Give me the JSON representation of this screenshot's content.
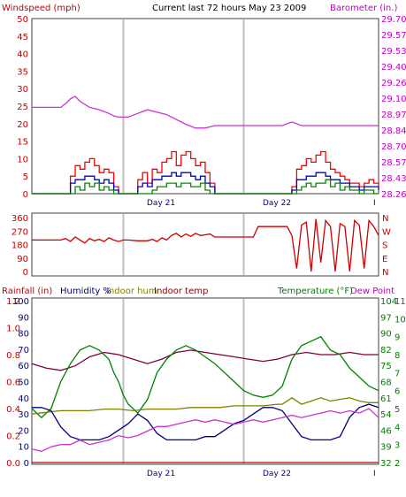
{
  "chart_data": [
    {
      "type": "line",
      "title": "Current last 72 hours May 23 2009",
      "left_axis": {
        "label": "Windspeed (mph)",
        "ticks": [
          "50",
          "45",
          "40",
          "35",
          "30",
          "25",
          "20",
          "15",
          "10",
          "5",
          "0"
        ],
        "range": [
          0,
          50
        ],
        "color": "#c00000"
      },
      "right_axis": {
        "label": "Barometer (in.)",
        "ticks": [
          "29.70",
          "29.57",
          "29.53",
          "29.40",
          "29.26",
          "29.10",
          "28.97",
          "28.84",
          "28.70",
          "28.57",
          "28.43",
          "28.26"
        ],
        "range": [
          28.26,
          29.7
        ],
        "color": "#c000c0"
      },
      "x_labels": [
        "Day 21",
        "Day 22",
        "I"
      ],
      "x_range": [
        0,
        72
      ],
      "day_lines": [
        19,
        44
      ],
      "series": [
        {
          "kind": "barometer",
          "color": "#cc33cc",
          "x": [
            0,
            6,
            7,
            8,
            9,
            10,
            12,
            14,
            16,
            17,
            18,
            19,
            20,
            22,
            24,
            26,
            28,
            30,
            32,
            34,
            36,
            38,
            40,
            42,
            44,
            46,
            48,
            50,
            52,
            54,
            56,
            58,
            60,
            62,
            64,
            66,
            68,
            70,
            72
          ],
          "y": [
            28.97,
            28.97,
            29.0,
            29.04,
            29.06,
            29.02,
            28.97,
            28.95,
            28.92,
            28.9,
            28.89,
            28.89,
            28.89,
            28.92,
            28.95,
            28.93,
            28.91,
            28.87,
            28.83,
            28.8,
            28.8,
            28.82,
            28.82,
            28.82,
            28.82,
            28.82,
            28.82,
            28.82,
            28.82,
            28.85,
            28.82,
            28.82,
            28.82,
            28.82,
            28.82,
            28.82,
            28.82,
            28.82,
            28.82
          ]
        },
        {
          "kind": "gust",
          "color": "#ff0000",
          "x": [
            0,
            7,
            8,
            9,
            10,
            11,
            12,
            13,
            14,
            15,
            16,
            17,
            18,
            19,
            20,
            21,
            22,
            23,
            24,
            25,
            26,
            27,
            28,
            29,
            30,
            31,
            32,
            33,
            34,
            35,
            36,
            37,
            38,
            39,
            40,
            41,
            42,
            43,
            44,
            45,
            46,
            47,
            48,
            49,
            50,
            51,
            52,
            53,
            54,
            55,
            56,
            57,
            58,
            59,
            60,
            61,
            62,
            63,
            64,
            65,
            66,
            67,
            68,
            69,
            70,
            71,
            72
          ],
          "y": [
            0,
            0,
            5,
            8,
            7,
            9,
            10,
            8,
            6,
            7,
            6,
            2,
            0,
            0,
            0,
            0,
            4,
            6,
            3,
            7,
            6,
            9,
            10,
            12,
            8,
            11,
            12,
            10,
            8,
            9,
            6,
            3,
            0,
            0,
            0,
            0,
            0,
            0,
            0,
            0,
            0,
            0,
            0,
            0,
            0,
            0,
            0,
            0,
            2,
            7,
            8,
            10,
            9,
            11,
            12,
            9,
            7,
            6,
            5,
            4,
            3,
            3,
            2,
            3,
            4,
            3,
            2
          ]
        },
        {
          "kind": "wind_avg",
          "color": "#0000cc",
          "x": [
            0,
            7,
            8,
            9,
            10,
            11,
            12,
            13,
            14,
            15,
            16,
            17,
            18,
            19,
            20,
            21,
            22,
            23,
            24,
            25,
            26,
            27,
            28,
            29,
            30,
            31,
            32,
            33,
            34,
            35,
            36,
            37,
            38,
            39,
            40,
            41,
            42,
            43,
            44,
            45,
            46,
            47,
            48,
            49,
            50,
            51,
            52,
            53,
            54,
            55,
            56,
            57,
            58,
            59,
            60,
            61,
            62,
            63,
            64,
            65,
            66,
            67,
            68,
            69,
            70,
            71,
            72
          ],
          "y": [
            0,
            0,
            3,
            4,
            4,
            5,
            5,
            4,
            3,
            4,
            3,
            1,
            0,
            0,
            0,
            0,
            2,
            3,
            2,
            4,
            4,
            5,
            5,
            6,
            5,
            6,
            6,
            5,
            4,
            5,
            3,
            2,
            0,
            0,
            0,
            0,
            0,
            0,
            0,
            0,
            0,
            0,
            0,
            0,
            0,
            0,
            0,
            0,
            1,
            4,
            4,
            5,
            5,
            6,
            6,
            5,
            4,
            4,
            3,
            3,
            2,
            2,
            1,
            2,
            2,
            2,
            1
          ]
        },
        {
          "kind": "wind_low",
          "color": "#008800",
          "x": [
            0,
            8,
            9,
            10,
            11,
            12,
            13,
            14,
            15,
            16,
            17,
            18,
            24,
            25,
            26,
            27,
            28,
            29,
            30,
            31,
            32,
            33,
            34,
            35,
            36,
            37,
            54,
            55,
            56,
            57,
            58,
            59,
            60,
            61,
            62,
            63,
            64,
            65,
            66,
            67,
            68,
            69,
            70,
            71,
            72
          ],
          "y": [
            0,
            0,
            2,
            1,
            3,
            2,
            3,
            1,
            2,
            1,
            0,
            0,
            0,
            1,
            2,
            2,
            3,
            3,
            2,
            3,
            3,
            2,
            2,
            3,
            1,
            0,
            0,
            1,
            2,
            3,
            2,
            3,
            3,
            4,
            2,
            3,
            1,
            2,
            1,
            1,
            0,
            1,
            1,
            0,
            0
          ]
        }
      ]
    },
    {
      "type": "line",
      "title": "",
      "left_axis": {
        "ticks": [
          "360",
          "270",
          "180",
          "90",
          "0"
        ],
        "range": [
          0,
          360
        ]
      },
      "right_axis": {
        "ticks": [
          "N",
          "W",
          "S",
          "E",
          "N"
        ]
      },
      "x_range": [
        0,
        72
      ],
      "day_lines": [
        19,
        44
      ],
      "series": [
        {
          "kind": "direction",
          "color": "#cc0000",
          "x": [
            0,
            6,
            7,
            8,
            9,
            10,
            11,
            12,
            13,
            14,
            15,
            16,
            17,
            18,
            19,
            20,
            22,
            24,
            25,
            26,
            27,
            28,
            29,
            30,
            31,
            32,
            33,
            34,
            35,
            36,
            37,
            38,
            40,
            42,
            44,
            46,
            47,
            48,
            50,
            52,
            53,
            54,
            55,
            56,
            57,
            58,
            59,
            60,
            61,
            62,
            63,
            64,
            65,
            66,
            67,
            68,
            69,
            70,
            71,
            72
          ],
          "y": [
            210,
            210,
            220,
            200,
            230,
            210,
            190,
            220,
            205,
            215,
            200,
            225,
            210,
            200,
            210,
            210,
            205,
            205,
            215,
            200,
            225,
            210,
            240,
            255,
            230,
            250,
            235,
            255,
            240,
            245,
            250,
            230,
            230,
            230,
            230,
            230,
            300,
            300,
            300,
            300,
            300,
            240,
            20,
            310,
            330,
            0,
            350,
            60,
            340,
            300,
            0,
            320,
            300,
            0,
            340,
            310,
            20,
            340,
            300,
            240
          ]
        }
      ]
    },
    {
      "type": "line",
      "title": "",
      "legend": [
        "Rainfall (in)",
        "Humidity %",
        "Indoor hum",
        "Indoor temp",
        "Temperature (°F)",
        "Dew Point"
      ],
      "legend_colors": [
        "#c00000",
        "#000080",
        "#808000",
        "#800000",
        "#008000",
        "#c000c0"
      ],
      "left_rain_ticks": [
        "1.2",
        "1.0",
        "0.8",
        "0.6",
        "0.4",
        "0.2",
        "0.0"
      ],
      "left_hum_ticks": [
        "100",
        "90",
        "80",
        "70",
        "60",
        "50",
        "40",
        "30",
        "20",
        "10",
        "0"
      ],
      "right_temp_ticks": [
        "104",
        "97",
        "90",
        "82",
        "75",
        "68",
        "61",
        "54",
        "46",
        "39",
        "32"
      ],
      "right_dew_ticks": [
        "11",
        "10",
        "9",
        "8",
        "7",
        "6",
        "5",
        "4",
        "3",
        "2"
      ],
      "x_labels": [
        "Day 21",
        "Day 22",
        "I"
      ],
      "x_range": [
        0,
        72
      ],
      "day_lines": [
        19,
        44
      ],
      "series": [
        {
          "kind": "indoor_temp",
          "color": "#800040",
          "x": [
            0,
            3,
            6,
            9,
            12,
            15,
            18,
            21,
            24,
            27,
            30,
            33,
            36,
            39,
            42,
            45,
            48,
            51,
            54,
            57,
            60,
            63,
            66,
            69,
            72
          ],
          "y": [
            76,
            74,
            73,
            75,
            79,
            81,
            80,
            78,
            76,
            78,
            81,
            82,
            81,
            80,
            79,
            78,
            77,
            78,
            80,
            81,
            80,
            80,
            81,
            80,
            80
          ]
        },
        {
          "kind": "temperature",
          "color": "#008000",
          "x": [
            0,
            2,
            4,
            6,
            8,
            10,
            12,
            14,
            16,
            17,
            18,
            19,
            20,
            22,
            24,
            26,
            28,
            30,
            32,
            34,
            36,
            38,
            40,
            42,
            43,
            44,
            46,
            48,
            50,
            52,
            54,
            56,
            58,
            60,
            62,
            64,
            66,
            68,
            70,
            72
          ],
          "y": [
            56,
            52,
            56,
            68,
            76,
            82,
            84,
            82,
            78,
            72,
            68,
            62,
            58,
            54,
            60,
            72,
            78,
            82,
            84,
            82,
            79,
            76,
            72,
            68,
            66,
            64,
            62,
            61,
            62,
            66,
            78,
            84,
            86,
            88,
            82,
            80,
            74,
            70,
            66,
            64
          ]
        },
        {
          "kind": "indoor_hum",
          "color": "#808000",
          "x": [
            0,
            3,
            6,
            9,
            12,
            15,
            18,
            21,
            24,
            27,
            30,
            33,
            36,
            39,
            42,
            45,
            48,
            51,
            52,
            54,
            56,
            58,
            60,
            62,
            64,
            66,
            68,
            70,
            72
          ],
          "y": [
            30,
            31,
            32,
            32,
            32,
            33,
            33,
            32,
            33,
            33,
            33,
            34,
            34,
            34,
            35,
            35,
            35,
            36,
            36,
            40,
            36,
            38,
            40,
            38,
            39,
            40,
            38,
            37,
            37
          ]
        },
        {
          "kind": "humidity",
          "color": "#000080",
          "x": [
            0,
            2,
            4,
            6,
            8,
            10,
            12,
            14,
            16,
            18,
            20,
            22,
            24,
            26,
            28,
            30,
            32,
            34,
            36,
            38,
            40,
            42,
            44,
            46,
            48,
            50,
            52,
            54,
            56,
            58,
            60,
            62,
            64,
            66,
            68,
            70,
            72
          ],
          "y": [
            34,
            34,
            32,
            22,
            16,
            14,
            14,
            14,
            16,
            20,
            24,
            30,
            26,
            18,
            14,
            14,
            14,
            14,
            16,
            16,
            20,
            24,
            26,
            30,
            34,
            34,
            32,
            24,
            16,
            14,
            14,
            14,
            16,
            28,
            34,
            36,
            34
          ]
        },
        {
          "kind": "dew_point",
          "color": "#cc33cc",
          "x": [
            0,
            2,
            4,
            6,
            8,
            10,
            12,
            14,
            16,
            18,
            20,
            22,
            24,
            26,
            28,
            30,
            32,
            34,
            36,
            38,
            40,
            42,
            44,
            46,
            48,
            50,
            52,
            54,
            56,
            58,
            60,
            62,
            64,
            66,
            68,
            70,
            72
          ],
          "y": [
            38,
            37,
            39,
            40,
            40,
            42,
            40,
            41,
            42,
            44,
            43,
            44,
            46,
            48,
            48,
            49,
            50,
            51,
            50,
            51,
            50,
            49,
            50,
            51,
            50,
            51,
            52,
            53,
            52,
            53,
            54,
            55,
            54,
            55,
            54,
            56,
            52
          ]
        },
        {
          "kind": "rain",
          "color": "#c00000",
          "x": [
            0,
            72
          ],
          "y": [
            0,
            0
          ]
        }
      ]
    }
  ]
}
